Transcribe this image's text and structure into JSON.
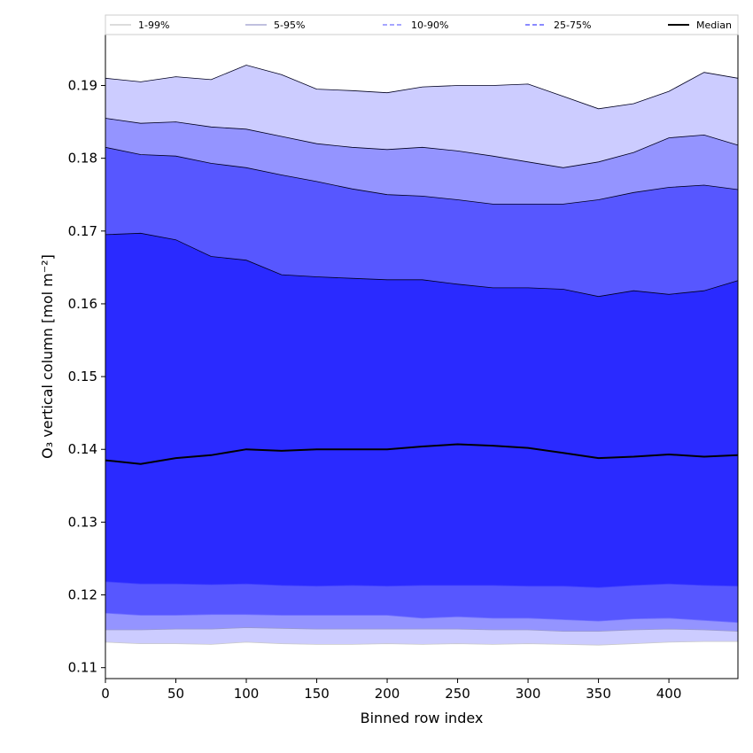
{
  "chart_data": {
    "type": "area",
    "xlabel": "Binned row index",
    "ylabel": "O₃ vertical column [mol m⁻²]",
    "xlim": [
      0,
      449
    ],
    "ylim": [
      0.1085,
      0.197
    ],
    "x_ticks": [
      0,
      50,
      100,
      150,
      200,
      250,
      300,
      350,
      400
    ],
    "y_ticks": [
      0.11,
      0.12,
      0.13,
      0.14,
      0.15,
      0.16,
      0.17,
      0.18,
      0.19
    ],
    "grid": false,
    "legend_position": "top",
    "x": [
      0,
      25,
      50,
      75,
      100,
      125,
      150,
      175,
      200,
      225,
      250,
      275,
      300,
      325,
      350,
      375,
      400,
      425,
      449
    ],
    "series": [
      {
        "name": "1-99%",
        "kind": "band",
        "fill": "#ccccff",
        "line": "#c8c8c8",
        "dash": "solid",
        "lower": [
          0.1135,
          0.1133,
          0.1133,
          0.1132,
          0.1135,
          0.1133,
          0.1132,
          0.1132,
          0.1133,
          0.1132,
          0.1133,
          0.1132,
          0.1133,
          0.1132,
          0.1131,
          0.1133,
          0.1135,
          0.1136,
          0.1136
        ],
        "upper": [
          0.191,
          0.1905,
          0.1912,
          0.1908,
          0.1928,
          0.1915,
          0.1895,
          0.1893,
          0.189,
          0.1898,
          0.19,
          0.19,
          0.1902,
          0.1885,
          0.1868,
          0.1875,
          0.1892,
          0.1918,
          0.191
        ]
      },
      {
        "name": "5-95%",
        "kind": "band",
        "fill": "#9494ff",
        "line": "#9a9acc",
        "dash": "solid",
        "lower": [
          0.1152,
          0.1152,
          0.1153,
          0.1153,
          0.1155,
          0.1154,
          0.1153,
          0.1153,
          0.1153,
          0.1153,
          0.1153,
          0.1152,
          0.1152,
          0.115,
          0.115,
          0.1152,
          0.1153,
          0.1152,
          0.115
        ],
        "upper": [
          0.1855,
          0.1848,
          0.185,
          0.1843,
          0.184,
          0.183,
          0.182,
          0.1815,
          0.1812,
          0.1815,
          0.181,
          0.1803,
          0.1795,
          0.1787,
          0.1795,
          0.1808,
          0.1828,
          0.1832,
          0.1818
        ]
      },
      {
        "name": "10-90%",
        "kind": "band",
        "fill": "#5757ff",
        "line": "#7070ff",
        "dash": "dashed",
        "lower": [
          0.1175,
          0.1172,
          0.1172,
          0.1173,
          0.1173,
          0.1172,
          0.1172,
          0.1172,
          0.1172,
          0.1168,
          0.117,
          0.1168,
          0.1168,
          0.1166,
          0.1164,
          0.1167,
          0.1168,
          0.1165,
          0.1162
        ],
        "upper": [
          0.1815,
          0.1805,
          0.1803,
          0.1793,
          0.1787,
          0.1777,
          0.1768,
          0.1758,
          0.175,
          0.1748,
          0.1743,
          0.1737,
          0.1737,
          0.1737,
          0.1743,
          0.1753,
          0.176,
          0.1763,
          0.1757
        ]
      },
      {
        "name": "25-75%",
        "kind": "band",
        "fill": "#2a2aff",
        "line": "#4343ff",
        "dash": "dashed",
        "lower": [
          0.1218,
          0.1215,
          0.1215,
          0.1214,
          0.1215,
          0.1213,
          0.1212,
          0.1213,
          0.1212,
          0.1213,
          0.1213,
          0.1213,
          0.1212,
          0.1212,
          0.121,
          0.1213,
          0.1215,
          0.1213,
          0.1212
        ],
        "upper": [
          0.1695,
          0.1697,
          0.1688,
          0.1665,
          0.166,
          0.164,
          0.1637,
          0.1635,
          0.1633,
          0.1633,
          0.1627,
          0.1622,
          0.1622,
          0.162,
          0.161,
          0.1618,
          0.1613,
          0.1618,
          0.1632
        ]
      },
      {
        "name": "Median",
        "kind": "line",
        "line": "#000000",
        "dash": "solid",
        "values": [
          0.1385,
          0.138,
          0.1388,
          0.1392,
          0.14,
          0.1398,
          0.14,
          0.14,
          0.14,
          0.1404,
          0.1407,
          0.1405,
          0.1402,
          0.1395,
          0.1388,
          0.139,
          0.1393,
          0.139,
          0.1392
        ]
      }
    ]
  }
}
